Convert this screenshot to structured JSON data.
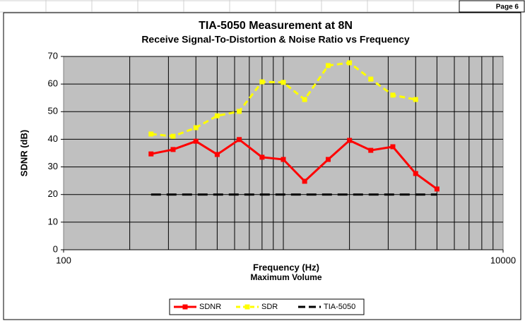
{
  "page_label": "Page 6",
  "chart_data": {
    "type": "line",
    "title": "TIA-5050 Measurement at 8N",
    "subtitle": "Receive Signal-To-Distortion & Noise Ratio vs Frequency",
    "xlabel": "Frequency (Hz)",
    "xlabel_note": "Maximum Volume",
    "ylabel": "SDNR (dB)",
    "x": [
      250,
      315,
      400,
      500,
      630,
      800,
      1000,
      1250,
      1600,
      2000,
      2500,
      3150,
      4000,
      5000
    ],
    "xscale": "log",
    "xlim": [
      100,
      10000
    ],
    "xticks": [
      100,
      10000
    ],
    "x_minor_ticks": [
      200,
      300,
      400,
      500,
      600,
      700,
      800,
      900,
      1000,
      2000,
      3000,
      4000,
      5000,
      6000,
      7000,
      8000,
      9000
    ],
    "ylim": [
      0,
      70
    ],
    "yticks": [
      0,
      10,
      20,
      30,
      40,
      50,
      60,
      70
    ],
    "grid": true,
    "legend": "bottom",
    "series": [
      {
        "name": "SDNR",
        "color": "#ff0000",
        "style": "solid",
        "marker": true,
        "values": [
          34.7,
          36.3,
          39.3,
          34.5,
          39.9,
          33.5,
          32.7,
          24.8,
          32.7,
          39.6,
          36.0,
          37.3,
          27.6,
          22.0
        ]
      },
      {
        "name": "SDR",
        "color": "#ffff00",
        "style": "dashed",
        "marker": true,
        "values": [
          41.9,
          41.1,
          44.2,
          48.5,
          50.1,
          60.8,
          60.6,
          54.4,
          66.7,
          67.7,
          61.8,
          56.0,
          54.4,
          null
        ]
      },
      {
        "name": "TIA-5050",
        "color": "#000000",
        "style": "dashed",
        "marker": false,
        "values": [
          20,
          20,
          20,
          20,
          20,
          20,
          20,
          20,
          20,
          20,
          20,
          20,
          20,
          20
        ]
      }
    ]
  }
}
